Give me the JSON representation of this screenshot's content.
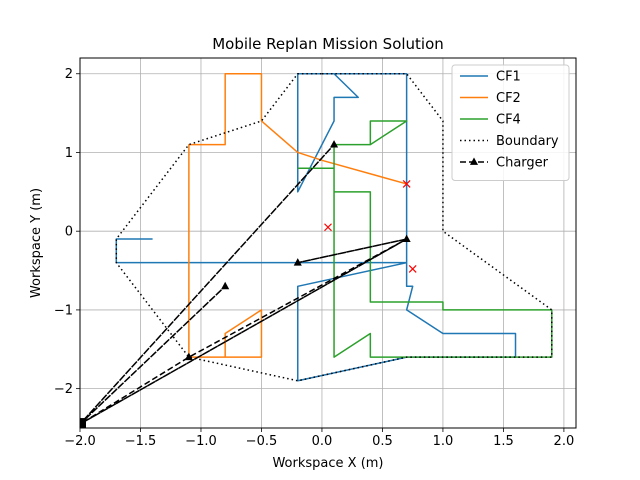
{
  "chart_data": {
    "type": "line",
    "title": "Mobile Replan Mission Solution",
    "xlabel": "Workspace X (m)",
    "ylabel": "Workspace Y (m)",
    "xlim": [
      -2.0,
      2.1
    ],
    "ylim": [
      -2.5,
      2.2
    ],
    "xticks": [
      -2.0,
      -1.5,
      -1.0,
      -0.5,
      0.0,
      0.5,
      1.0,
      1.5,
      2.0
    ],
    "xtick_labels": [
      "−2.0",
      "−1.5",
      "−1.0",
      "−0.5",
      "0.0",
      "0.5",
      "1.0",
      "1.5",
      "2.0"
    ],
    "yticks": [
      -2,
      -1,
      0,
      1,
      2
    ],
    "ytick_labels": [
      "−2",
      "−1",
      "0",
      "1",
      "2"
    ],
    "grid": true,
    "legend_position": "top-right",
    "series": [
      {
        "name": "CF1",
        "color": "#1f77b4",
        "style": "solid",
        "marker": "none",
        "x": [
          -1.4,
          -1.7,
          -1.7,
          0.7,
          0.7,
          -0.2,
          -0.2,
          0.1,
          0.1,
          0.3,
          0.1,
          0.1,
          0.7,
          0.7,
          0.75,
          0.7,
          0.7,
          1.0,
          1.6,
          1.6,
          0.7,
          -0.2,
          -0.2,
          0.7,
          0.7
        ],
        "y": [
          -0.1,
          -0.1,
          -0.4,
          -0.4,
          2.0,
          2.0,
          0.5,
          1.4,
          1.7,
          1.7,
          2.0,
          2.0,
          2.0,
          -0.7,
          -0.7,
          -1.0,
          -1.0,
          -1.3,
          -1.3,
          -1.6,
          -1.6,
          -1.9,
          -0.7,
          -0.4,
          -0.4
        ]
      },
      {
        "name": "CF2",
        "color": "#ff7f0e",
        "style": "solid",
        "marker": "none",
        "x": [
          0.7,
          0.0,
          -0.2,
          -0.2,
          -0.5,
          -0.5,
          -0.8,
          -0.8,
          -1.1,
          -1.1,
          -0.8,
          -0.8,
          -0.5,
          -0.5,
          -1.1
        ],
        "y": [
          0.6,
          0.9,
          1.0,
          1.0,
          1.4,
          2.0,
          2.0,
          1.1,
          1.1,
          -1.6,
          -1.6,
          -1.3,
          -1.0,
          -1.6,
          -1.6
        ]
      },
      {
        "name": "CF4",
        "color": "#2ca02c",
        "style": "solid",
        "marker": "none",
        "x": [
          -0.2,
          0.1,
          0.1,
          0.1,
          0.4,
          0.4,
          1.0,
          1.0,
          1.0,
          1.9,
          1.9,
          0.4,
          0.4,
          0.4,
          0.1,
          0.1,
          0.1,
          0.4,
          0.7,
          0.4,
          0.4,
          0.1
        ],
        "y": [
          0.8,
          0.8,
          0.5,
          0.5,
          0.5,
          -0.9,
          -0.9,
          -1.0,
          -1.0,
          -1.0,
          -1.6,
          -1.6,
          -1.3,
          -1.3,
          -1.6,
          0.2,
          1.1,
          1.1,
          1.4,
          1.4,
          1.1,
          1.1
        ]
      },
      {
        "name": "Boundary",
        "color": "#000000",
        "style": "dotted",
        "marker": "none",
        "x": [
          0.0,
          0.7,
          1.0,
          1.0,
          1.9,
          1.9,
          0.7,
          -0.2,
          -1.1,
          -1.7,
          -1.7,
          -1.1,
          -0.5,
          -0.2,
          0.0
        ],
        "y": [
          2.0,
          2.0,
          1.4,
          0.0,
          -1.0,
          -1.6,
          -1.6,
          -1.9,
          -1.6,
          -0.4,
          -0.1,
          1.1,
          1.4,
          2.0,
          2.0
        ]
      },
      {
        "name": "Charger",
        "color": "#000000",
        "style": "dashed",
        "marker": "triangle",
        "x": [
          -2.0,
          -0.8,
          -2.0,
          0.1,
          -2.0,
          0.7,
          -0.2,
          0.7,
          -2.0,
          -1.1,
          0.7
        ],
        "y": [
          -2.45,
          -0.7,
          -2.45,
          1.1,
          -2.45,
          -0.1,
          -0.4,
          -0.1,
          -2.45,
          -1.6,
          -0.1
        ]
      }
    ],
    "extra_markers": [
      {
        "kind": "x",
        "color": "#ff0000",
        "x": 0.7,
        "y": 0.6
      },
      {
        "kind": "x",
        "color": "#ff0000",
        "x": 0.05,
        "y": 0.05
      },
      {
        "kind": "x",
        "color": "#ff0000",
        "x": 0.75,
        "y": -0.48
      },
      {
        "kind": "square",
        "color": "#000000",
        "x": -2.0,
        "y": -2.45
      }
    ]
  }
}
